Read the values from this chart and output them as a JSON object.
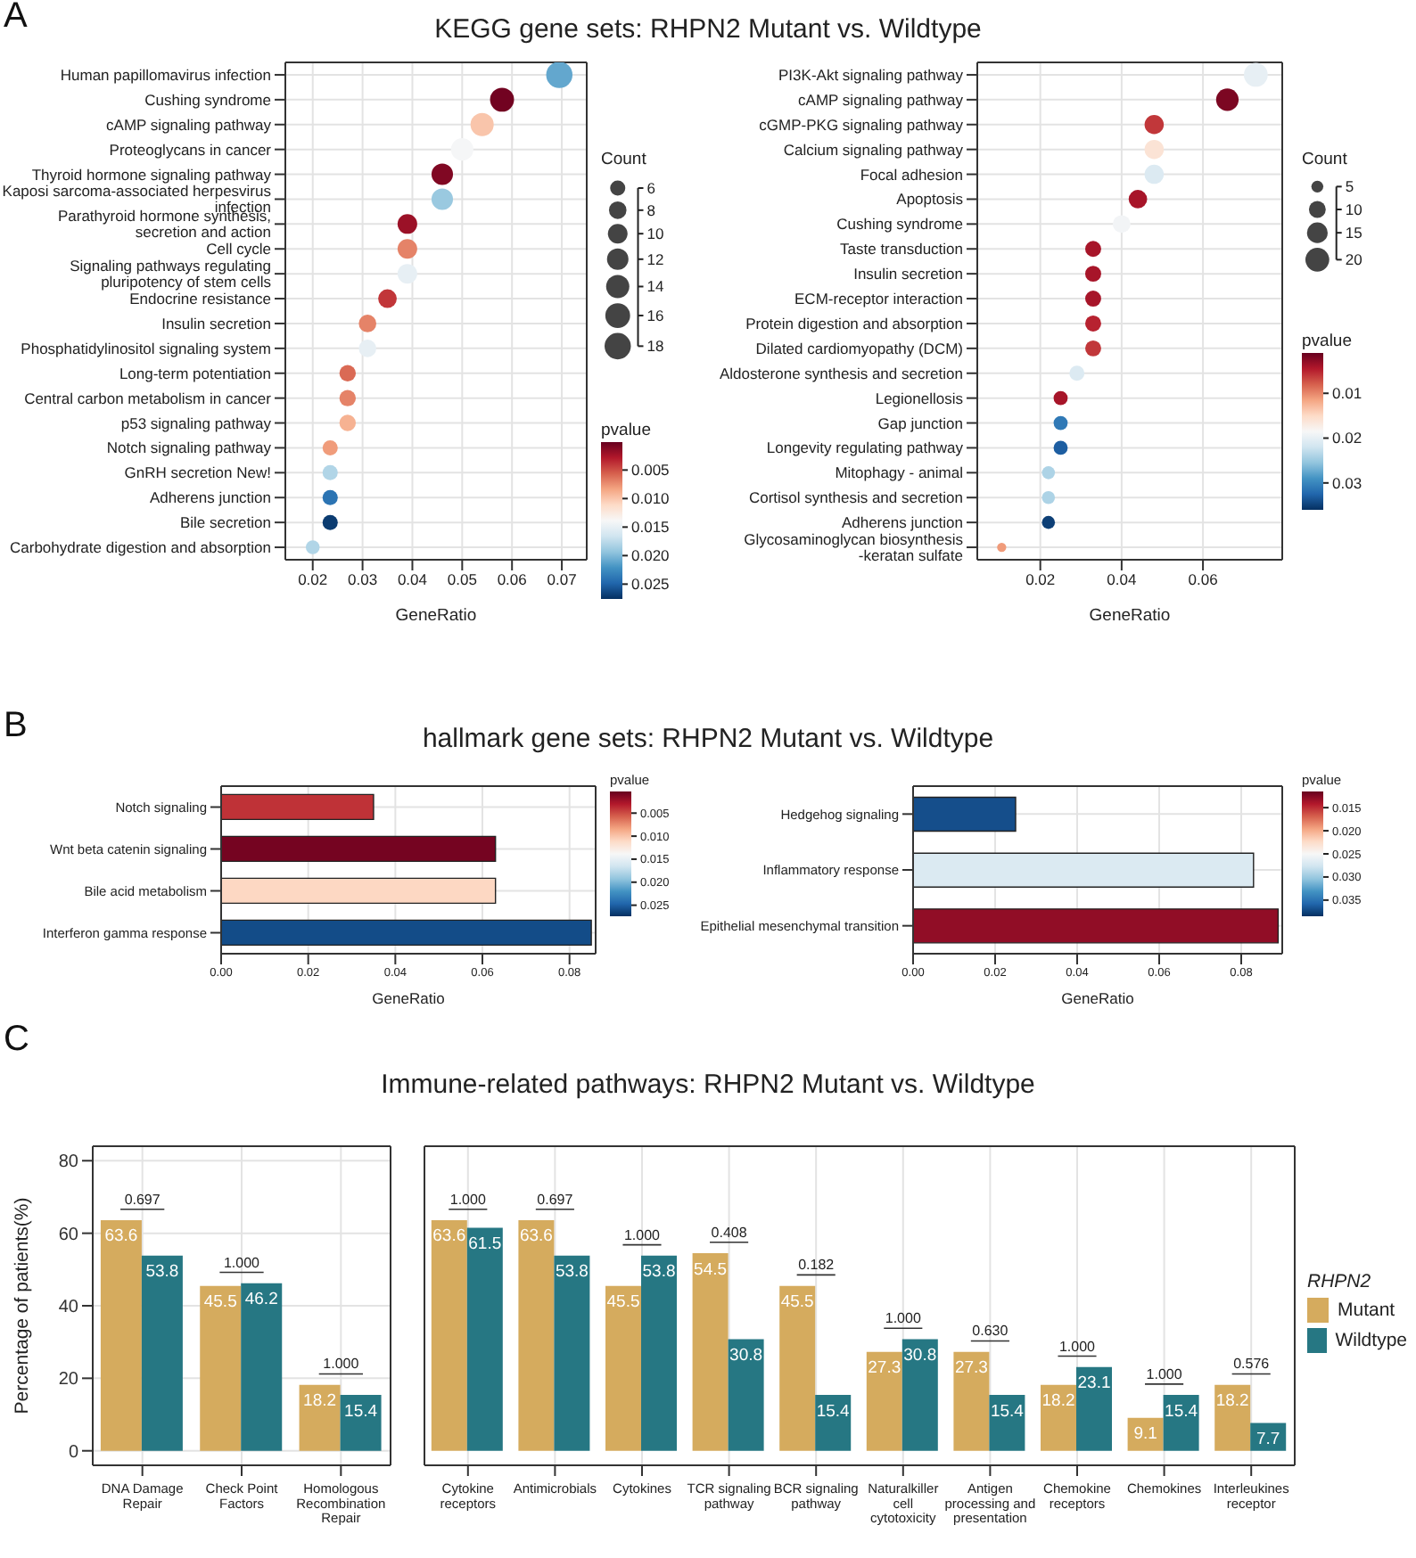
{
  "chart_data": [
    {
      "type": "bubble",
      "title": "KEGG gene sets: RHPN2 Mutant vs. Wildtype",
      "annotations": [
        "A"
      ],
      "orientation": "horizontal",
      "xlabel": "GeneRatio",
      "xlim": [
        0.0145,
        0.075
      ],
      "xticks": [
        0.02,
        0.03,
        0.04,
        0.05,
        0.06,
        0.07
      ],
      "grid": true,
      "legend_title": "Count",
      "size_legend": [
        6,
        8,
        10,
        12,
        14,
        16,
        18
      ],
      "clabel": "pvalue",
      "clim": [
        0.0001,
        0.0276
      ],
      "cticks": [
        0.005,
        {
          "value": 0.01,
          "label": "0.010"
        },
        0.015,
        {
          "value": 0.02,
          "label": "0.020"
        },
        0.025
      ],
      "categories": [
        "Human papillomavirus infection",
        "Cushing syndrome",
        "cAMP signaling pathway",
        "Proteoglycans in cancer",
        "Thyroid hormone signaling pathway",
        "Kaposi sarcoma-associated herpesvirus infection",
        "Parathyroid hormone synthesis, secretion and action",
        "Cell cycle",
        "Signaling pathways regulating pluripotency of stem cells",
        "Endocrine resistance",
        "Insulin secretion",
        "Phosphatidylinositol signaling system",
        "Long-term potentiation",
        "Central carbon metabolism in cancer",
        "p53 signaling pathway",
        "Notch signaling pathway",
        "GnRH secretion New!",
        "Adherens junction",
        "Bile secretion",
        "Carbohydrate digestion and absorption"
      ],
      "values": [
        0.0695,
        0.058,
        0.054,
        0.05,
        0.046,
        0.046,
        0.039,
        0.039,
        0.039,
        0.035,
        0.031,
        0.031,
        0.027,
        0.027,
        0.027,
        0.0235,
        0.0235,
        0.0235,
        0.0235,
        0.02
      ],
      "sizes": [
        18,
        15,
        14,
        13,
        12,
        12,
        10,
        10,
        10,
        9,
        8,
        8,
        7,
        7,
        7,
        6,
        6,
        6,
        6,
        5
      ],
      "cvalues": [
        0.021,
        0.0005,
        0.01,
        0.014,
        0.001,
        0.019,
        0.002,
        0.007,
        0.015,
        0.004,
        0.007,
        0.015,
        0.006,
        0.007,
        0.009,
        0.008,
        0.018,
        0.024,
        0.027,
        0.018
      ]
    },
    {
      "type": "bubble",
      "orientation": "horizontal",
      "xlabel": "GeneRatio",
      "xlim": [
        0.0045,
        0.0795
      ],
      "xticks": [
        0.02,
        0.04,
        0.06
      ],
      "grid": true,
      "legend_title": "Count",
      "size_legend": [
        5,
        10,
        15,
        20
      ],
      "clabel": "pvalue",
      "clim": [
        0.001,
        0.036
      ],
      "cticks": [
        0.01,
        0.02,
        0.03
      ],
      "categories": [
        "PI3K-Akt signaling pathway",
        "cAMP signaling pathway",
        "cGMP-PKG signaling pathway",
        "Calcium signaling pathway",
        "Focal adhesion",
        "Apoptosis",
        "Cushing syndrome",
        "Taste transduction",
        "Insulin secretion",
        "ECM-receptor interaction",
        "Protein digestion and absorption",
        "Dilated cardiomyopathy (DCM)",
        "Aldosterone synthesis and secretion",
        "Legionellosis",
        "Gap junction",
        "Longevity regulating pathway",
        "Mitophagy - animal",
        "Cortisol synthesis and secretion",
        "Adherens junction",
        "Glycosaminoglycan biosynthesis -keratan sulfate"
      ],
      "values": [
        0.073,
        0.066,
        0.048,
        0.048,
        0.048,
        0.044,
        0.04,
        0.033,
        0.033,
        0.033,
        0.033,
        0.033,
        0.029,
        0.025,
        0.025,
        0.025,
        0.022,
        0.022,
        0.022,
        0.0105
      ],
      "sizes": [
        20,
        18,
        13,
        13,
        13,
        12,
        11,
        9,
        9,
        9,
        9,
        9,
        8,
        7,
        7,
        7,
        6,
        6,
        6,
        3
      ],
      "cvalues": [
        0.02,
        0.002,
        0.006,
        0.016,
        0.021,
        0.004,
        0.019,
        0.004,
        0.004,
        0.004,
        0.005,
        0.006,
        0.021,
        0.004,
        0.031,
        0.033,
        0.024,
        0.024,
        0.035,
        0.011
      ]
    },
    {
      "type": "bar",
      "title": "hallmark gene sets: RHPN2 Mutant vs. Wildtype",
      "annotations": [
        "B"
      ],
      "orientation": "horizontal",
      "xlabel": "GeneRatio",
      "xlim": [
        0,
        0.086
      ],
      "xticks": [
        {
          "value": 0,
          "label": "0.00"
        },
        0.02,
        0.04,
        0.06,
        0.08
      ],
      "grid": true,
      "clabel": "pvalue",
      "clim": [
        0.0003,
        0.0274
      ],
      "cticks": [
        0.005,
        {
          "value": 0.01,
          "label": "0.010"
        },
        0.015,
        {
          "value": 0.02,
          "label": "0.020"
        },
        0.025
      ],
      "categories": [
        "Notch signaling",
        "Wnt beta catenin signaling",
        "Bile acid metabolism",
        "Interferon gamma response"
      ],
      "values": [
        0.035,
        0.063,
        0.063,
        0.085
      ],
      "cvalues": [
        0.004,
        0.0008,
        0.011,
        0.026
      ]
    },
    {
      "type": "bar",
      "orientation": "horizontal",
      "xlabel": "GeneRatio",
      "xlim": [
        0,
        0.09
      ],
      "xticks": [
        {
          "value": 0,
          "label": "0.00"
        },
        0.02,
        0.04,
        0.06,
        0.08
      ],
      "grid": true,
      "clabel": "pvalue",
      "clim": [
        0.0115,
        0.0385
      ],
      "cticks": [
        0.015,
        {
          "value": 0.02,
          "label": "0.020"
        },
        0.025,
        {
          "value": 0.03,
          "label": "0.030"
        },
        0.035
      ],
      "categories": [
        "Hedgehog signaling",
        "Inflammatory response",
        "Epithelial mesenchymal transition"
      ],
      "values": [
        0.025,
        0.083,
        0.089
      ],
      "cvalues": [
        0.037,
        0.027,
        0.013
      ]
    },
    {
      "type": "bar",
      "ylabel": "Percentage of patients(%)",
      "ylim": [
        -4,
        84
      ],
      "yticks": [
        0,
        20,
        40,
        60,
        80
      ],
      "grid": true,
      "data_labels": true,
      "categories": [
        "DNA Damage Repair",
        "Check Point Factors",
        "Homologous Recombination Repair"
      ],
      "series": [
        {
          "color": "#d5ab5e",
          "values": [
            63.6,
            45.5,
            18.2
          ]
        },
        {
          "color": "#267783",
          "values": [
            53.8,
            46.2,
            15.4
          ]
        }
      ],
      "annotations": [
        "C",
        "0.697",
        "1.000",
        "1.000"
      ]
    },
    {
      "type": "bar",
      "title": "Immune-related pathways: RHPN2 Mutant vs. Wildtype",
      "ylim": [
        -4,
        84
      ],
      "yticks": [
        0,
        20,
        40,
        60,
        80
      ],
      "tick_labels": "x",
      "grid": true,
      "data_labels": true,
      "legend": "right",
      "legend_title": "RHPN2",
      "categories": [
        "Cytokine receptors",
        "Antimicrobials",
        "Cytokines",
        "TCR signaling pathway",
        "BCR signaling pathway",
        "Naturalkiller cell cytotoxicity",
        "Antigen processing and presentation",
        "Chemokine receptors",
        "Chemokines",
        "Interleukines receptor"
      ],
      "series": [
        {
          "name": "Mutant",
          "color": "#d5ab5e",
          "values": [
            63.6,
            63.6,
            45.5,
            54.5,
            45.5,
            27.3,
            27.3,
            18.2,
            9.1,
            18.2
          ]
        },
        {
          "name": "Wildtype",
          "color": "#267783",
          "values": [
            61.5,
            53.8,
            53.8,
            30.8,
            15.4,
            30.8,
            15.4,
            23.1,
            15.4,
            7.7
          ]
        }
      ],
      "annotations": [
        "1.000",
        "0.697",
        "1.000",
        "0.408",
        "0.182",
        "1.000",
        "0.630",
        "1.000",
        "1.000",
        "0.576"
      ]
    }
  ]
}
